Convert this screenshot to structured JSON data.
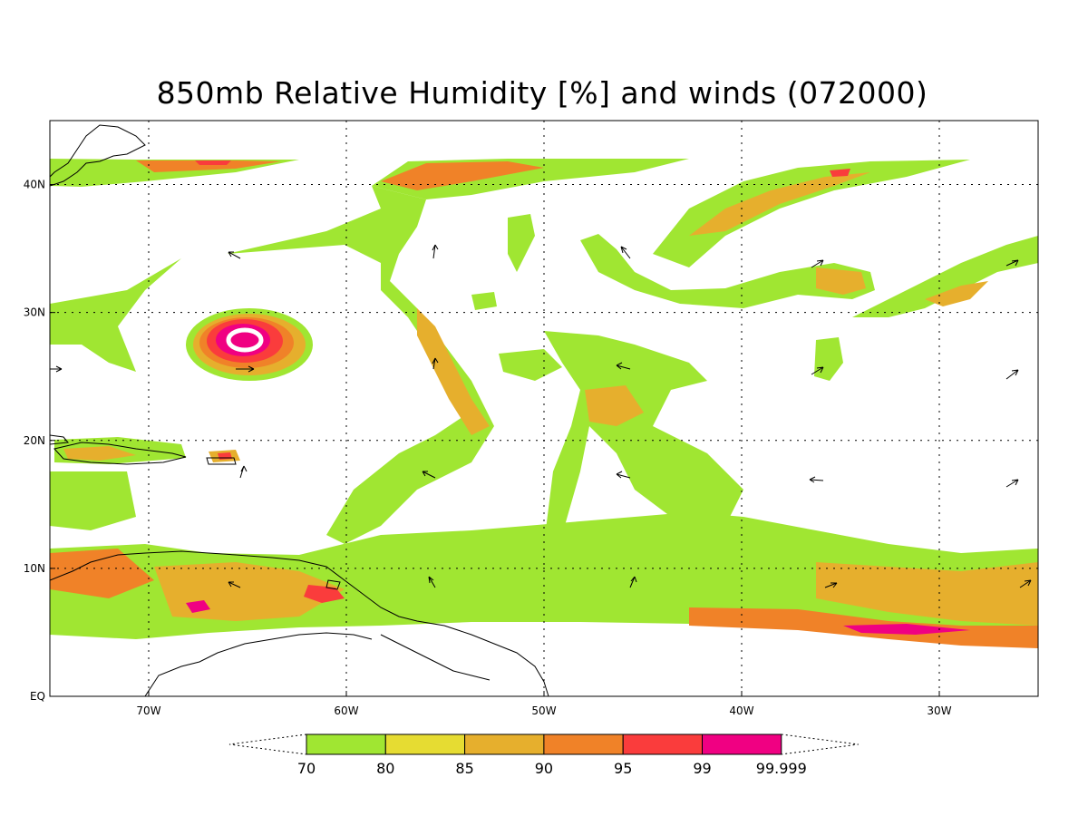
{
  "title": "850mb Relative Humidity [%] and winds (072000)",
  "map": {
    "lon_range": [
      -75,
      -25
    ],
    "lat_range": [
      0,
      45
    ],
    "x_ticks": [
      {
        "lon": -70,
        "label": "70W"
      },
      {
        "lon": -60,
        "label": "60W"
      },
      {
        "lon": -50,
        "label": "50W"
      },
      {
        "lon": -40,
        "label": "40W"
      },
      {
        "lon": -30,
        "label": "30W"
      }
    ],
    "y_ticks": [
      {
        "lat": 0,
        "label": "EQ"
      },
      {
        "lat": 10,
        "label": "10N"
      },
      {
        "lat": 20,
        "label": "20N"
      },
      {
        "lat": 30,
        "label": "30N"
      },
      {
        "lat": 40,
        "label": "40N"
      }
    ],
    "grid": "dotted"
  },
  "colorbar": {
    "labels": [
      "70",
      "80",
      "85",
      "90",
      "95",
      "99",
      "99.999"
    ],
    "colors": [
      "#a0e632",
      "#e6dc32",
      "#e6af2d",
      "#f08228",
      "#fa3c3c",
      "#f00082"
    ]
  },
  "fill_colors": {
    "green": "#a0e632",
    "yellow": "#e6dc32",
    "gold": "#e6af2d",
    "orange": "#f08228",
    "red": "#fa3c3c",
    "magenta": "#f00082"
  }
}
